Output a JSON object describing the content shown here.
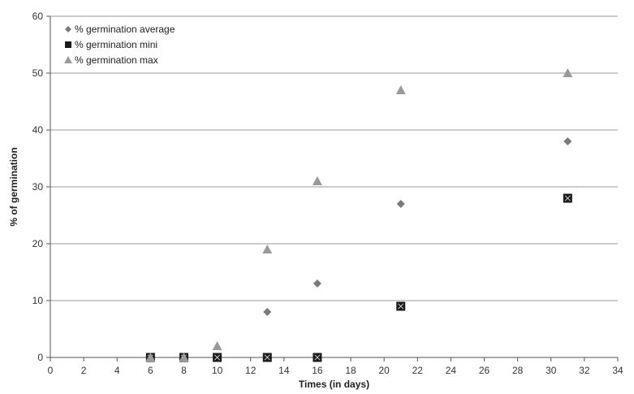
{
  "chart_data": {
    "type": "scatter",
    "xlabel": "Times (in days)",
    "ylabel": "% of germination",
    "xlim": [
      0,
      34
    ],
    "ylim": [
      0,
      60
    ],
    "xticks": [
      0,
      2,
      4,
      6,
      8,
      10,
      12,
      14,
      16,
      18,
      20,
      22,
      24,
      26,
      28,
      30,
      32,
      34
    ],
    "yticks": [
      0,
      10,
      20,
      30,
      40,
      50,
      60
    ],
    "grid": "horizontal",
    "legend_position": "top-left",
    "series": [
      {
        "name": "% germination average",
        "marker": "diamond",
        "color": "#7a7a7a",
        "points": [
          [
            6,
            0
          ],
          [
            8,
            0
          ],
          [
            10,
            0
          ],
          [
            13,
            8
          ],
          [
            16,
            13
          ],
          [
            21,
            27
          ],
          [
            31,
            38
          ]
        ]
      },
      {
        "name": "% germination mini",
        "marker": "square",
        "color": "#1a1a1a",
        "points": [
          [
            6,
            0
          ],
          [
            8,
            0
          ],
          [
            10,
            0
          ],
          [
            13,
            0
          ],
          [
            16,
            0
          ],
          [
            21,
            9
          ],
          [
            31,
            28
          ]
        ]
      },
      {
        "name": "% germination max",
        "marker": "triangle",
        "color": "#9a9a9a",
        "points": [
          [
            6,
            0
          ],
          [
            8,
            0
          ],
          [
            10,
            2
          ],
          [
            13,
            19
          ],
          [
            16,
            31
          ],
          [
            21,
            47
          ],
          [
            31,
            50
          ]
        ]
      }
    ]
  }
}
